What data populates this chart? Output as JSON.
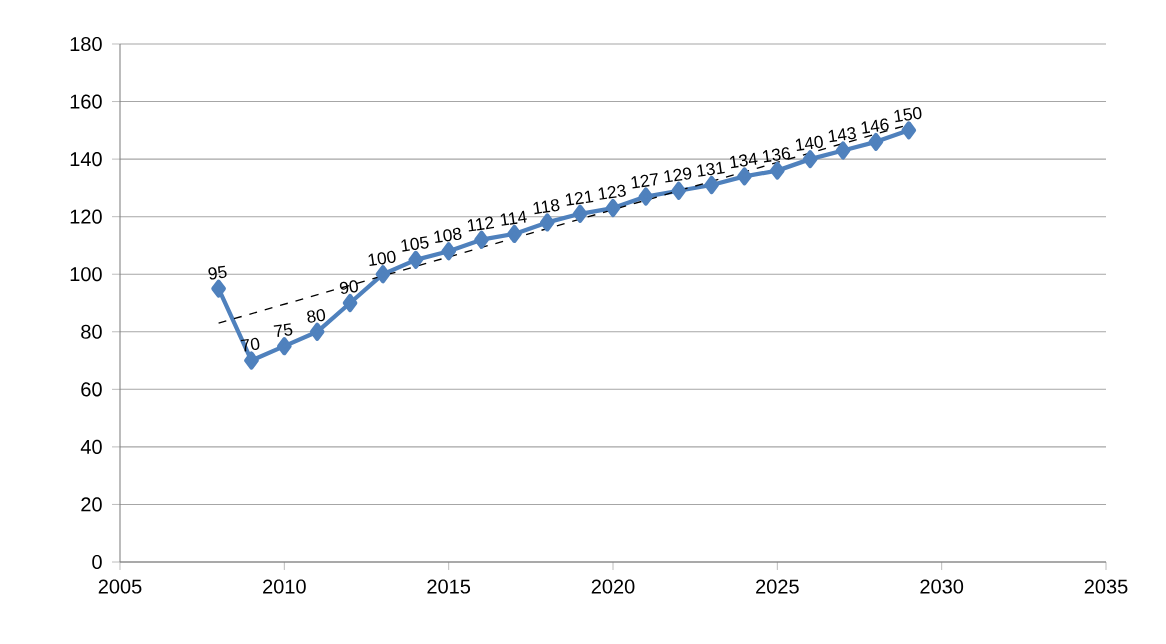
{
  "chart_data": {
    "type": "line",
    "xlim": [
      2005,
      2035
    ],
    "ylim": [
      0,
      180
    ],
    "xticks": [
      2005,
      2010,
      2015,
      2020,
      2025,
      2030,
      2035
    ],
    "yticks": [
      0,
      20,
      40,
      60,
      80,
      100,
      120,
      140,
      160,
      180
    ],
    "grid": "y",
    "marker": "diamond",
    "series": [
      {
        "color": "#4f81bd",
        "x": [
          2008,
          2009,
          2010,
          2011,
          2012,
          2013,
          2014,
          2015,
          2016,
          2017,
          2018,
          2019,
          2020,
          2021,
          2022,
          2023,
          2024,
          2025,
          2026,
          2027,
          2028,
          2029
        ],
        "values": [
          95,
          70,
          75,
          80,
          90,
          100,
          105,
          108,
          112,
          114,
          118,
          121,
          123,
          127,
          129,
          131,
          134,
          136,
          140,
          143,
          146,
          150
        ],
        "value_labels": [
          "95",
          "70",
          "75",
          "80",
          "90",
          "100",
          "105",
          "108",
          "112",
          "114",
          "118",
          "121",
          "123",
          "127",
          "129",
          "131",
          "134",
          "136",
          "140",
          "143",
          "146",
          "150"
        ]
      },
      {
        "type": "line",
        "color": "#000000",
        "line_style": "dashed",
        "marker": "none",
        "x": [
          2008,
          2029
        ],
        "values": [
          83,
          152
        ]
      }
    ]
  }
}
